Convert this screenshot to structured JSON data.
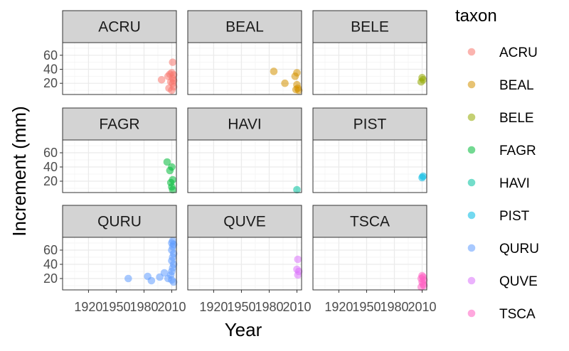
{
  "chart_data": {
    "type": "scatter",
    "facet": "taxon",
    "xlabel": "Year",
    "ylabel": "Increment (mm)",
    "x_ticks": [
      1920,
      1950,
      1980,
      2010
    ],
    "x_tick_labels": [
      "1920",
      "1950",
      "1980",
      "2010"
    ],
    "y_ticks": [
      20,
      40,
      60
    ],
    "y_tick_labels": [
      "20",
      "40",
      "60"
    ],
    "xlim": [
      1892,
      2015
    ],
    "ylim_rows": [
      [
        4,
        78
      ],
      [
        4,
        78
      ],
      [
        4,
        78
      ]
    ],
    "legend": {
      "title": "taxon",
      "placement": "right",
      "entries": [
        "ACRU",
        "BEAL",
        "BELE",
        "FAGR",
        "HAVI",
        "PIST",
        "QURU",
        "QUVE",
        "TSCA"
      ]
    },
    "series": [
      {
        "name": "ACRU",
        "color": "#F8766D",
        "points": [
          [
            2011,
            50
          ],
          [
            2010,
            35
          ],
          [
            2008,
            33
          ],
          [
            2006,
            30
          ],
          [
            2012,
            32
          ],
          [
            2011,
            27
          ],
          [
            2009,
            22
          ],
          [
            1999,
            25
          ],
          [
            2011,
            20
          ],
          [
            2012,
            15
          ],
          [
            2007,
            13
          ],
          [
            2010,
            10
          ],
          [
            2012,
            24
          ]
        ]
      },
      {
        "name": "BEAL",
        "color": "#D39200",
        "points": [
          [
            1985,
            37
          ],
          [
            2010,
            35
          ],
          [
            2008,
            30
          ],
          [
            1997,
            20
          ],
          [
            2010,
            18
          ],
          [
            2011,
            13
          ],
          [
            2009,
            11
          ],
          [
            2012,
            10
          ]
        ]
      },
      {
        "name": "BELE",
        "color": "#93AA00",
        "points": [
          [
            2010,
            28
          ],
          [
            2011,
            25
          ],
          [
            2009,
            22
          ]
        ]
      },
      {
        "name": "FAGR",
        "color": "#00BA38",
        "points": [
          [
            2005,
            47
          ],
          [
            2010,
            40
          ],
          [
            2008,
            35
          ],
          [
            2011,
            22
          ],
          [
            2009,
            18
          ],
          [
            2010,
            12
          ],
          [
            2011,
            8
          ]
        ]
      },
      {
        "name": "HAVI",
        "color": "#00C19F",
        "points": [
          [
            2010,
            8
          ]
        ]
      },
      {
        "name": "PIST",
        "color": "#00B9E3",
        "points": [
          [
            2011,
            27
          ],
          [
            2010,
            25
          ]
        ]
      },
      {
        "name": "QURU",
        "color": "#619CFF",
        "points": [
          [
            1963,
            20
          ],
          [
            1984,
            23
          ],
          [
            1988,
            17
          ],
          [
            1997,
            22
          ],
          [
            2002,
            28
          ],
          [
            2006,
            20
          ],
          [
            2009,
            25
          ],
          [
            2010,
            30
          ],
          [
            2011,
            35
          ],
          [
            2012,
            40
          ],
          [
            2010,
            45
          ],
          [
            2011,
            50
          ],
          [
            2012,
            55
          ],
          [
            2010,
            60
          ],
          [
            2011,
            65
          ],
          [
            2012,
            68
          ],
          [
            2011,
            73
          ],
          [
            2010,
            70
          ],
          [
            2012,
            15
          ],
          [
            2010,
            18
          ]
        ]
      },
      {
        "name": "QUVE",
        "color": "#DB72FB",
        "points": [
          [
            2011,
            47
          ],
          [
            2010,
            33
          ],
          [
            2012,
            30
          ],
          [
            2011,
            25
          ]
        ]
      },
      {
        "name": "TSCA",
        "color": "#FF61C3",
        "points": [
          [
            2010,
            24
          ],
          [
            2011,
            22
          ],
          [
            2009,
            20
          ],
          [
            2012,
            18
          ],
          [
            2010,
            15
          ],
          [
            2011,
            12
          ],
          [
            2012,
            10
          ],
          [
            2009,
            8
          ]
        ]
      }
    ]
  }
}
